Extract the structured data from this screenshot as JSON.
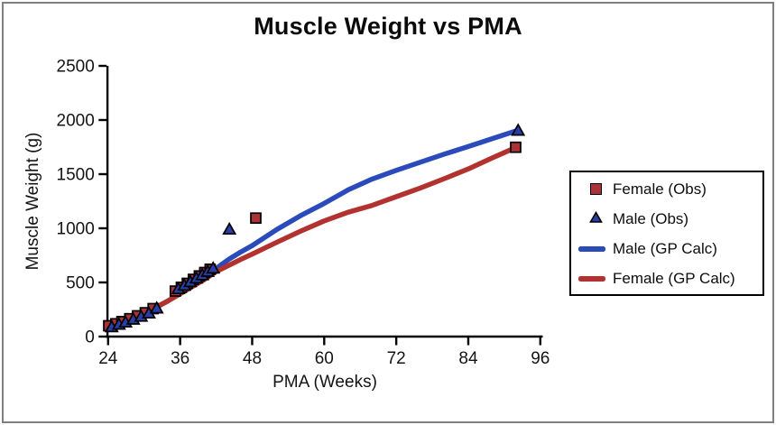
{
  "page": {
    "background": "#ffffff",
    "frame_border_color": "#7f7f7f",
    "legend_border_color": "#000000",
    "axis_color": "#000000",
    "text_color": "#141414"
  },
  "chart_data": {
    "type": "scatter",
    "title": "Muscle Weight vs PMA",
    "xlabel": "PMA (Weeks)",
    "ylabel": "Muscle Weight (g)",
    "xlim": [
      24,
      96
    ],
    "ylim": [
      0,
      2500
    ],
    "x_ticks": [
      24,
      36,
      48,
      60,
      72,
      84,
      96
    ],
    "y_ticks": [
      0,
      500,
      1000,
      1500,
      2000,
      2500
    ],
    "grid": false,
    "legend_position": "outside-right",
    "series": [
      {
        "name": "Female (Obs)",
        "kind": "scatter",
        "marker": "square",
        "color": "#A93336",
        "points": [
          [
            24.1,
            100
          ],
          [
            25.3,
            118
          ],
          [
            26.3,
            138
          ],
          [
            27.6,
            165
          ],
          [
            28.9,
            192
          ],
          [
            30.2,
            220
          ],
          [
            31.5,
            258
          ],
          [
            35.2,
            420
          ],
          [
            36.2,
            455
          ],
          [
            37.2,
            492
          ],
          [
            38.2,
            528
          ],
          [
            39.2,
            560
          ],
          [
            40.1,
            592
          ],
          [
            41.0,
            622
          ],
          [
            48.6,
            1094
          ],
          [
            91.9,
            1748
          ]
        ]
      },
      {
        "name": "Male (Obs)",
        "kind": "scatter",
        "marker": "triangle",
        "color": "#2A3FA5",
        "points": [
          [
            24.6,
            88
          ],
          [
            25.8,
            112
          ],
          [
            26.9,
            132
          ],
          [
            28.2,
            158
          ],
          [
            29.5,
            185
          ],
          [
            30.8,
            215
          ],
          [
            32.1,
            262
          ],
          [
            35.7,
            440
          ],
          [
            36.7,
            472
          ],
          [
            37.7,
            505
          ],
          [
            38.7,
            538
          ],
          [
            39.7,
            568
          ],
          [
            40.6,
            600
          ],
          [
            41.5,
            630
          ],
          [
            44.2,
            990
          ],
          [
            92.3,
            1903
          ]
        ]
      },
      {
        "name": "Male (GP Calc)",
        "kind": "line",
        "marker": "line",
        "color": "#2B4BBB",
        "points": [
          [
            24,
            85
          ],
          [
            26,
            122
          ],
          [
            28,
            165
          ],
          [
            30,
            214
          ],
          [
            32,
            270
          ],
          [
            34,
            330
          ],
          [
            36,
            397
          ],
          [
            38,
            468
          ],
          [
            40,
            545
          ],
          [
            42,
            628
          ],
          [
            44,
            710
          ],
          [
            46,
            778
          ],
          [
            48,
            840
          ],
          [
            52,
            985
          ],
          [
            56,
            1115
          ],
          [
            60,
            1230
          ],
          [
            64,
            1355
          ],
          [
            68,
            1455
          ],
          [
            72,
            1535
          ],
          [
            76,
            1610
          ],
          [
            80,
            1685
          ],
          [
            84,
            1755
          ],
          [
            88,
            1828
          ],
          [
            92,
            1900
          ]
        ]
      },
      {
        "name": "Female (GP Calc)",
        "kind": "line",
        "marker": "line",
        "color": "#B23230",
        "points": [
          [
            24,
            85
          ],
          [
            26,
            122
          ],
          [
            28,
            165
          ],
          [
            30,
            214
          ],
          [
            32,
            270
          ],
          [
            34,
            330
          ],
          [
            36,
            395
          ],
          [
            38,
            460
          ],
          [
            40,
            525
          ],
          [
            42,
            600
          ],
          [
            44,
            655
          ],
          [
            46,
            710
          ],
          [
            48,
            762
          ],
          [
            52,
            868
          ],
          [
            56,
            972
          ],
          [
            60,
            1068
          ],
          [
            64,
            1148
          ],
          [
            68,
            1212
          ],
          [
            72,
            1292
          ],
          [
            76,
            1372
          ],
          [
            80,
            1458
          ],
          [
            84,
            1548
          ],
          [
            88,
            1650
          ],
          [
            92,
            1748
          ]
        ]
      }
    ]
  }
}
